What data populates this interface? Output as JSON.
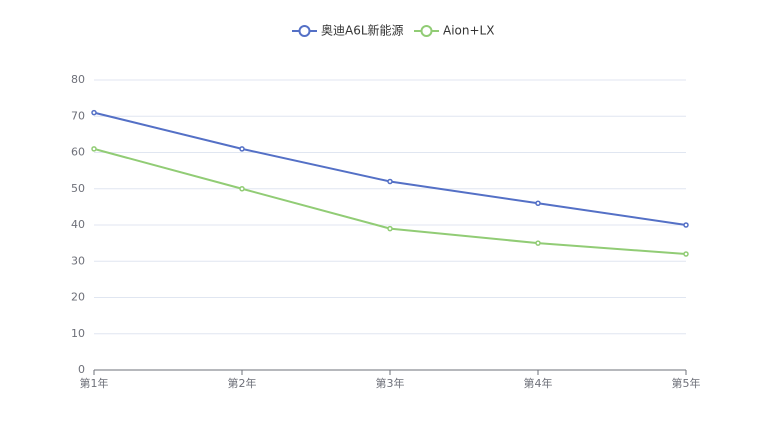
{
  "chart_data": {
    "type": "line",
    "categories": [
      "第1年",
      "第2年",
      "第3年",
      "第4年",
      "第5年"
    ],
    "series": [
      {
        "name": "奥迪A6L新能源",
        "color": "#5470c6",
        "values": [
          71,
          61,
          52,
          46,
          40
        ]
      },
      {
        "name": "Aion+LX",
        "color": "#91cc75",
        "values": [
          61,
          50,
          39,
          35,
          32
        ]
      }
    ],
    "ylim": [
      0,
      80
    ],
    "yticks": [
      0,
      10,
      20,
      30,
      40,
      50,
      60,
      70,
      80
    ],
    "grid": true
  }
}
